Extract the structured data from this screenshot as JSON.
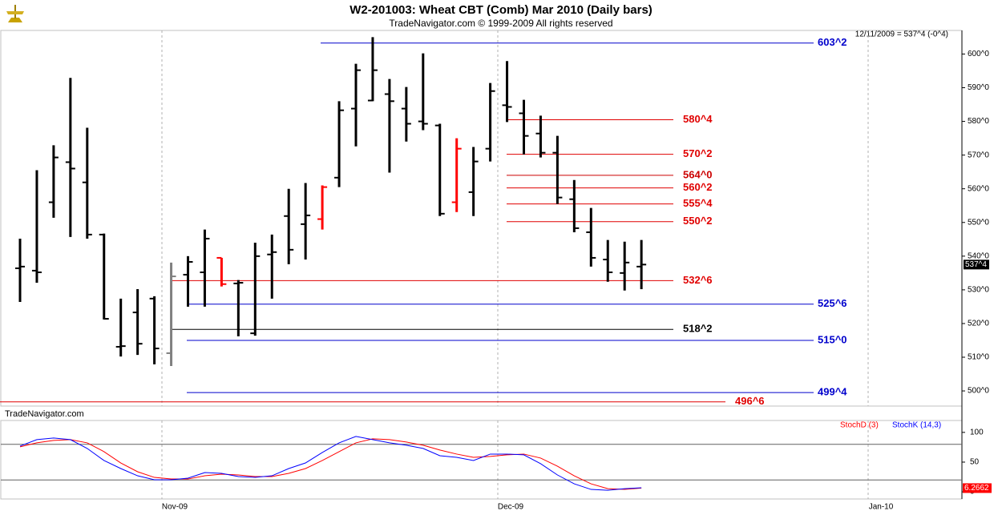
{
  "chart_data": [
    {
      "type": "ohlc",
      "title": "W2-201003:  Wheat CBT (Comb) Mar 2010  (Daily bars)",
      "subtitle": "TradeNavigator.com © 1999-2009 All rights reserved",
      "watermark": "TradeNavigator.com",
      "info": "12/11/2009 = 537^4 (-0^4)",
      "categories": [
        null,
        null,
        null,
        null,
        null,
        null,
        null,
        null,
        null,
        null,
        null,
        null,
        null,
        null,
        null,
        null,
        null,
        null,
        null,
        null,
        null,
        null,
        null,
        null,
        null,
        null,
        null,
        null,
        null,
        null,
        null,
        null,
        null,
        null,
        null,
        null,
        null,
        null
      ],
      "open": [
        536.4,
        535.7,
        556.0,
        567.9,
        561.9,
        546.4,
        513.1,
        523.3,
        527.4,
        511.2,
        534.5,
        535.2,
        539.5,
        531.9,
        517.1,
        540.5,
        551.9,
        549.5,
        551.0,
        563.3,
        583.8,
        586.2,
        588.1,
        583.8,
        580.0,
        578.8,
        556.0,
        559.0,
        571.9,
        584.8,
        582.4,
        576.4,
        570.7,
        556.9,
        547.1,
        539.0,
        535.0,
        536.9
      ],
      "high": [
        545.2,
        565.5,
        572.9,
        592.9,
        578.1,
        546.7,
        527.4,
        530.2,
        528.1,
        538.1,
        540.0,
        547.9,
        539.5,
        532.9,
        544.0,
        546.4,
        560.0,
        561.7,
        561.0,
        586.0,
        597.1,
        605.0,
        592.6,
        590.2,
        600.2,
        579.3,
        575.0,
        572.4,
        591.4,
        597.9,
        586.4,
        581.7,
        575.7,
        562.6,
        554.3,
        544.8,
        544.3,
        544.8
      ],
      "low": [
        526.4,
        532.1,
        551.4,
        545.7,
        545.2,
        521.2,
        510.2,
        510.7,
        507.9,
        507.4,
        525.0,
        525.0,
        531.0,
        516.2,
        516.4,
        527.4,
        537.6,
        539.0,
        547.9,
        560.5,
        572.6,
        586.0,
        564.8,
        574.0,
        577.4,
        551.9,
        553.1,
        551.9,
        568.1,
        579.8,
        570.2,
        569.3,
        555.5,
        547.1,
        536.9,
        532.4,
        529.8,
        530.2
      ],
      "close": [
        536.9,
        535.2,
        569.3,
        566.0,
        546.4,
        521.4,
        513.3,
        514.0,
        512.6,
        534.0,
        538.3,
        545.2,
        531.7,
        532.1,
        540.0,
        541.2,
        541.9,
        552.1,
        560.5,
        583.3,
        595.2,
        595.2,
        586.0,
        579.3,
        579.3,
        552.6,
        571.9,
        568.1,
        589.0,
        584.3,
        575.7,
        570.7,
        557.4,
        548.3,
        539.5,
        535.2,
        538.1,
        537.5
      ],
      "colors": [
        "#000000",
        "#000000",
        "#000000",
        "#000000",
        "#000000",
        "#000000",
        "#000000",
        "#000000",
        "#000000",
        "#808080",
        "#000000",
        "#000000",
        "#ff0000",
        "#000000",
        "#000000",
        "#000000",
        "#000000",
        "#000000",
        "#ff0000",
        "#000000",
        "#000000",
        "#000000",
        "#000000",
        "#000000",
        "#000000",
        "#000000",
        "#ff0000",
        "#000000",
        "#000000",
        "#000000",
        "#000000",
        "#000000",
        "#000000",
        "#000000",
        "#000000",
        "#000000",
        "#000000",
        "#000000"
      ],
      "ylim": [
        495.5,
        607
      ],
      "yticks": [
        {
          "value": 500,
          "label": "500^0"
        },
        {
          "value": 510,
          "label": "510^0"
        },
        {
          "value": 520,
          "label": "520^0"
        },
        {
          "value": 530,
          "label": "530^0"
        },
        {
          "value": 540,
          "label": "540^0"
        },
        {
          "value": 550,
          "label": "550^0"
        },
        {
          "value": 560,
          "label": "560^0"
        },
        {
          "value": 570,
          "label": "570^0"
        },
        {
          "value": 580,
          "label": "580^0"
        },
        {
          "value": 590,
          "label": "590^0"
        },
        {
          "value": 600,
          "label": "600^0"
        }
      ],
      "last_price": {
        "value": 537.5,
        "label": "537^4"
      },
      "levels": [
        {
          "value": 603.25,
          "label": "603^2",
          "color": "#0000cc"
        },
        {
          "value": 580.5,
          "label": "580^4",
          "color": "#e00000"
        },
        {
          "value": 570.25,
          "label": "570^2",
          "color": "#e00000"
        },
        {
          "value": 564,
          "label": "564^0",
          "color": "#cc0000"
        },
        {
          "value": 560.25,
          "label": "560^2",
          "color": "#e00000"
        },
        {
          "value": 555.5,
          "label": "555^4",
          "color": "#e00000"
        },
        {
          "value": 550.25,
          "label": "550^2",
          "color": "#e00000"
        },
        {
          "value": 532.75,
          "label": "532^6",
          "color": "#e00000"
        },
        {
          "value": 525.75,
          "label": "525^6",
          "color": "#0000cc"
        },
        {
          "value": 518.25,
          "label": "518^2",
          "color": "#000000"
        },
        {
          "value": 515,
          "label": "515^0",
          "color": "#0000cc"
        },
        {
          "value": 499.5,
          "label": "499^4",
          "color": "#0000cc"
        },
        {
          "value": 496.75,
          "label": "496^6",
          "color": "#e00000"
        }
      ]
    },
    {
      "type": "line",
      "categories": [
        null,
        null,
        null,
        null,
        null,
        null,
        null,
        null,
        null,
        null,
        null,
        null,
        null,
        null,
        null,
        null,
        null,
        null,
        null,
        null,
        null,
        null,
        null,
        null,
        null,
        null,
        null,
        null,
        null,
        null,
        null,
        null,
        null,
        null,
        null,
        null,
        null,
        null
      ],
      "xtick_labels": [
        "Nov-09",
        "Dec-09",
        "Jan-10"
      ],
      "series": [
        {
          "name": "StochD (3)",
          "color": "#ff0000",
          "values": [
            75.7,
            82.4,
            86.5,
            87.8,
            82.4,
            67.6,
            48.6,
            33.8,
            24.3,
            21.6,
            21.6,
            27.0,
            29.7,
            28.4,
            25.7,
            25.7,
            31.1,
            39.2,
            52.7,
            67.6,
            82.4,
            89.2,
            87.8,
            83.8,
            78.4,
            70.3,
            63.5,
            58.1,
            59.5,
            62.2,
            63.5,
            56.8,
            43.2,
            27.0,
            13.5,
            5.4,
            4.1,
            6.2662
          ]
        },
        {
          "name": "StochK (14,3)",
          "color": "#0000ff",
          "values": [
            77.0,
            87.8,
            90.5,
            87.8,
            73.0,
            52.7,
            39.2,
            27.0,
            20.3,
            20.3,
            23.0,
            32.4,
            31.1,
            25.7,
            24.3,
            27.0,
            39.2,
            48.6,
            66.2,
            82.4,
            93.2,
            87.8,
            82.4,
            78.4,
            73.0,
            60.8,
            58.1,
            52.7,
            63.5,
            63.5,
            62.2,
            47.3,
            28.4,
            13.5,
            4.1,
            2.7,
            5.4,
            6.8
          ]
        }
      ],
      "ylim": [
        -12,
        120
      ],
      "yticks": [
        0,
        50,
        100
      ],
      "reference_lines": [
        20,
        80
      ]
    }
  ]
}
